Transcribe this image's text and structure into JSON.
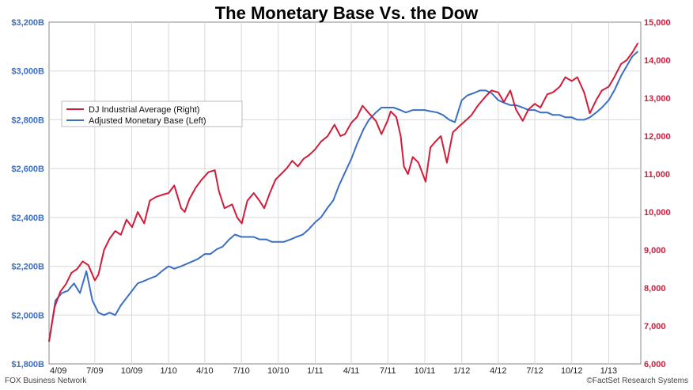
{
  "chart_data": {
    "type": "line",
    "title": "The Monetary Base Vs. the Dow",
    "xlabel": "",
    "ylabel": "",
    "x_ticks": [
      "4/09",
      "7/09",
      "10/09",
      "1/10",
      "4/10",
      "7/10",
      "10/10",
      "1/11",
      "4/11",
      "7/11",
      "10/11",
      "1/12",
      "4/12",
      "7/12",
      "10/12",
      "1/13"
    ],
    "y_left_ticks": [
      "$1,800B",
      "$2,000B",
      "$2,200B",
      "$2,400B",
      "$2,600B",
      "$2,800B",
      "$3,000B",
      "$3,200B"
    ],
    "y_left_range": [
      1800,
      3200
    ],
    "y_right_ticks": [
      "6,000",
      "7,000",
      "8,000",
      "9,000",
      "10,000",
      "11,000",
      "12,000",
      "13,000",
      "14,000",
      "15,000"
    ],
    "y_right_range": [
      6000,
      15000
    ],
    "grid": true,
    "legend_position": "upper-left",
    "series": [
      {
        "name": "DJ Industrial Average (Right)",
        "axis": "right",
        "color": "#d21c3a",
        "x": [
          "2009-03-09",
          "2009-03-23",
          "2009-04-06",
          "2009-04-20",
          "2009-05-04",
          "2009-05-18",
          "2009-06-01",
          "2009-06-15",
          "2009-07-01",
          "2009-07-10",
          "2009-07-24",
          "2009-08-07",
          "2009-08-21",
          "2009-09-04",
          "2009-09-18",
          "2009-10-02",
          "2009-10-16",
          "2009-11-01",
          "2009-11-15",
          "2009-12-01",
          "2009-12-15",
          "2010-01-01",
          "2010-01-15",
          "2010-02-01",
          "2010-02-10",
          "2010-02-22",
          "2010-03-10",
          "2010-03-24",
          "2010-04-10",
          "2010-04-26",
          "2010-05-06",
          "2010-05-20",
          "2010-06-08",
          "2010-06-21",
          "2010-07-02",
          "2010-07-16",
          "2010-08-01",
          "2010-08-15",
          "2010-08-27",
          "2010-09-10",
          "2010-09-24",
          "2010-10-08",
          "2010-10-22",
          "2010-11-05",
          "2010-11-19",
          "2010-12-03",
          "2010-12-17",
          "2011-01-01",
          "2011-01-15",
          "2011-02-01",
          "2011-02-18",
          "2011-03-05",
          "2011-03-16",
          "2011-04-01",
          "2011-04-15",
          "2011-04-29",
          "2011-05-15",
          "2011-06-01",
          "2011-06-15",
          "2011-06-30",
          "2011-07-08",
          "2011-07-22",
          "2011-08-02",
          "2011-08-10",
          "2011-08-20",
          "2011-09-01",
          "2011-09-15",
          "2011-10-03",
          "2011-10-15",
          "2011-10-27",
          "2011-11-10",
          "2011-11-25",
          "2011-12-10",
          "2011-12-25",
          "2012-01-10",
          "2012-01-25",
          "2012-02-10",
          "2012-03-01",
          "2012-03-15",
          "2012-04-01",
          "2012-04-15",
          "2012-05-01",
          "2012-05-15",
          "2012-06-01",
          "2012-06-15",
          "2012-07-01",
          "2012-07-15",
          "2012-08-01",
          "2012-08-15",
          "2012-09-01",
          "2012-09-15",
          "2012-10-01",
          "2012-10-15",
          "2012-11-01",
          "2012-11-15",
          "2012-12-01",
          "2012-12-15",
          "2013-01-01",
          "2013-01-15",
          "2013-02-01",
          "2013-02-15",
          "2013-03-01",
          "2013-03-15"
        ],
        "values": [
          6600,
          7500,
          7900,
          8100,
          8400,
          8500,
          8700,
          8600,
          8200,
          8350,
          9000,
          9300,
          9500,
          9400,
          9800,
          9600,
          10000,
          9700,
          10300,
          10400,
          10450,
          10500,
          10700,
          10100,
          10000,
          10350,
          10650,
          10850,
          11050,
          11100,
          10550,
          10100,
          10200,
          9850,
          9700,
          10300,
          10500,
          10300,
          10100,
          10500,
          10850,
          11000,
          11150,
          11350,
          11200,
          11400,
          11500,
          11650,
          11850,
          12000,
          12300,
          12000,
          12050,
          12350,
          12500,
          12800,
          12600,
          12400,
          12050,
          12400,
          12650,
          12500,
          12000,
          11200,
          11000,
          11450,
          11300,
          10800,
          11700,
          11850,
          12000,
          11300,
          12100,
          12250,
          12400,
          12550,
          12800,
          13050,
          13200,
          13150,
          12900,
          13200,
          12700,
          12400,
          12700,
          12850,
          12750,
          13100,
          13150,
          13300,
          13550,
          13450,
          13550,
          13150,
          12600,
          12950,
          13200,
          13300,
          13550,
          13900,
          14000,
          14200,
          14450
        ]
      },
      {
        "name": "Adjusted Monetary Base (Left)",
        "axis": "left",
        "color": "#3a6fc4",
        "x": [
          "2009-03-09",
          "2009-03-25",
          "2009-04-10",
          "2009-04-25",
          "2009-05-10",
          "2009-05-25",
          "2009-06-10",
          "2009-06-25",
          "2009-07-10",
          "2009-07-24",
          "2009-08-07",
          "2009-08-21",
          "2009-09-04",
          "2009-09-18",
          "2009-10-02",
          "2009-10-16",
          "2009-11-01",
          "2009-11-15",
          "2009-12-01",
          "2009-12-15",
          "2010-01-01",
          "2010-01-15",
          "2010-02-01",
          "2010-02-15",
          "2010-03-01",
          "2010-03-15",
          "2010-04-01",
          "2010-04-15",
          "2010-05-01",
          "2010-05-15",
          "2010-06-01",
          "2010-06-15",
          "2010-07-01",
          "2010-07-15",
          "2010-08-01",
          "2010-08-15",
          "2010-09-01",
          "2010-09-15",
          "2010-10-01",
          "2010-10-15",
          "2010-11-01",
          "2010-11-15",
          "2010-12-01",
          "2010-12-15",
          "2011-01-01",
          "2011-01-15",
          "2011-02-01",
          "2011-02-15",
          "2011-03-01",
          "2011-03-15",
          "2011-04-01",
          "2011-04-15",
          "2011-05-01",
          "2011-05-15",
          "2011-06-01",
          "2011-06-15",
          "2011-07-01",
          "2011-07-15",
          "2011-08-01",
          "2011-08-15",
          "2011-09-01",
          "2011-09-15",
          "2011-10-01",
          "2011-10-15",
          "2011-11-01",
          "2011-11-15",
          "2011-12-01",
          "2011-12-15",
          "2012-01-01",
          "2012-01-15",
          "2012-02-01",
          "2012-02-15",
          "2012-03-01",
          "2012-03-15",
          "2012-04-01",
          "2012-04-15",
          "2012-05-01",
          "2012-05-15",
          "2012-06-01",
          "2012-06-15",
          "2012-07-01",
          "2012-07-15",
          "2012-08-01",
          "2012-08-15",
          "2012-09-01",
          "2012-09-15",
          "2012-10-01",
          "2012-10-15",
          "2012-11-01",
          "2012-11-15",
          "2012-12-01",
          "2012-12-15",
          "2013-01-01",
          "2013-01-15",
          "2013-02-01",
          "2013-02-15",
          "2013-03-01",
          "2013-03-15"
        ],
        "values": [
          1890,
          2060,
          2090,
          2100,
          2130,
          2090,
          2180,
          2060,
          2010,
          2000,
          2010,
          2000,
          2040,
          2070,
          2100,
          2130,
          2140,
          2150,
          2160,
          2180,
          2200,
          2190,
          2200,
          2210,
          2220,
          2230,
          2250,
          2250,
          2270,
          2280,
          2310,
          2330,
          2320,
          2320,
          2320,
          2310,
          2310,
          2300,
          2300,
          2300,
          2310,
          2320,
          2330,
          2350,
          2380,
          2400,
          2440,
          2470,
          2530,
          2580,
          2640,
          2700,
          2760,
          2800,
          2830,
          2850,
          2850,
          2850,
          2840,
          2830,
          2840,
          2840,
          2840,
          2835,
          2830,
          2820,
          2800,
          2790,
          2880,
          2900,
          2910,
          2920,
          2920,
          2910,
          2880,
          2870,
          2860,
          2860,
          2850,
          2840,
          2840,
          2830,
          2830,
          2820,
          2820,
          2810,
          2810,
          2800,
          2800,
          2810,
          2830,
          2850,
          2880,
          2920,
          2980,
          3020,
          3060,
          3080
        ]
      }
    ]
  },
  "source_left": "FOX Business Network",
  "source_right": "©FactSet Research Systems"
}
